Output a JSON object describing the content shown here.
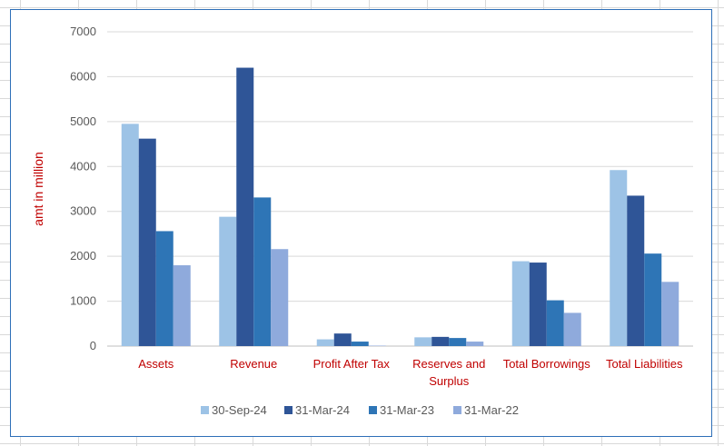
{
  "chart_data": {
    "type": "bar",
    "title": "",
    "xlabel": "",
    "ylabel": "amt in million",
    "ylim": [
      0,
      7000
    ],
    "yticks": [
      0,
      1000,
      2000,
      3000,
      4000,
      5000,
      6000,
      7000
    ],
    "grid": true,
    "legend_position": "bottom",
    "categories": [
      "Assets",
      "Revenue",
      "Profit After Tax",
      "Reserves and Surplus",
      "Total Borrowings",
      "Total Liabilities"
    ],
    "series": [
      {
        "name": "30-Sep-24",
        "color": "#9dc3e6",
        "values": [
          4950,
          2880,
          150,
          195,
          1890,
          3920
        ]
      },
      {
        "name": "31-Mar-24",
        "color": "#2f5597",
        "values": [
          4620,
          6200,
          280,
          205,
          1860,
          3350
        ]
      },
      {
        "name": "31-Mar-23",
        "color": "#2e75b6",
        "values": [
          2560,
          3310,
          100,
          180,
          1020,
          2060
        ]
      },
      {
        "name": "31-Mar-22",
        "color": "#8faadc",
        "values": [
          1800,
          2160,
          10,
          100,
          740,
          1430
        ]
      }
    ]
  }
}
